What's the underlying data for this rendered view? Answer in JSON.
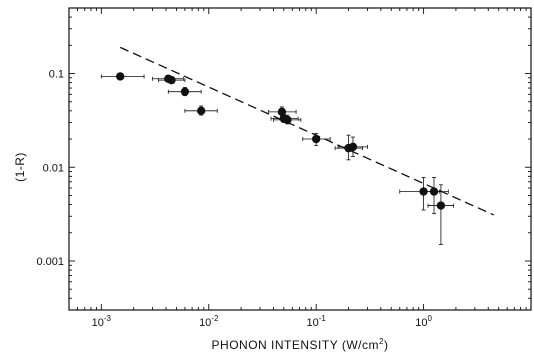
{
  "chart_data": {
    "type": "scatter",
    "title": "",
    "xlabel": "PHONON INTENSITY (W/cm",
    "xlabel_superscript": "2",
    "xlabel_suffix": ")",
    "ylabel": "(1-R)",
    "xscale": "log",
    "yscale": "log",
    "xlim": [
      0.0005,
      10
    ],
    "ylim": [
      0.0003,
      0.5
    ],
    "grid": false,
    "x_ticks": [
      {
        "value": 0.001,
        "base": "10",
        "exp": "-3"
      },
      {
        "value": 0.01,
        "base": "10",
        "exp": "-2"
      },
      {
        "value": 0.1,
        "base": "10",
        "exp": "-1"
      },
      {
        "value": 1,
        "base": "10",
        "exp": "0"
      }
    ],
    "y_ticks": [
      {
        "value": 0.1,
        "label": "0.1"
      },
      {
        "value": 0.01,
        "label": "0.01"
      },
      {
        "value": 0.001,
        "label": "0.001"
      }
    ],
    "series": [
      {
        "marker": "filled-circle",
        "color": "#111111",
        "points": [
          {
            "x": 0.0015,
            "y": 0.093,
            "xerr": [
              0.001,
              0.0025
            ],
            "yerr": [
              0.087,
              0.1
            ]
          },
          {
            "x": 0.0042,
            "y": 0.088,
            "xerr": [
              0.003,
              0.0058
            ],
            "yerr": [
              0.082,
              0.094
            ]
          },
          {
            "x": 0.0045,
            "y": 0.085,
            "xerr": [
              0.0034,
              0.006
            ],
            "yerr": [
              0.079,
              0.091
            ]
          },
          {
            "x": 0.006,
            "y": 0.064,
            "xerr": [
              0.0042,
              0.0085
            ],
            "yerr": [
              0.058,
              0.071
            ]
          },
          {
            "x": 0.0085,
            "y": 0.04,
            "xerr": [
              0.006,
              0.012
            ],
            "yerr": [
              0.036,
              0.045
            ]
          },
          {
            "x": 0.048,
            "y": 0.039,
            "xerr": [
              0.036,
              0.065
            ],
            "yerr": [
              0.035,
              0.044
            ]
          },
          {
            "x": 0.05,
            "y": 0.033,
            "xerr": [
              0.038,
              0.068
            ],
            "yerr": [
              0.03,
              0.037
            ]
          },
          {
            "x": 0.054,
            "y": 0.032,
            "xerr": [
              0.04,
              0.072
            ],
            "yerr": [
              0.029,
              0.036
            ]
          },
          {
            "x": 0.1,
            "y": 0.02,
            "xerr": [
              0.075,
              0.135
            ],
            "yerr": [
              0.017,
              0.023
            ]
          },
          {
            "x": 0.2,
            "y": 0.016,
            "xerr": [
              0.15,
              0.27
            ],
            "yerr": [
              0.012,
              0.022
            ]
          },
          {
            "x": 0.22,
            "y": 0.0165,
            "xerr": [
              0.16,
              0.3
            ],
            "yerr": [
              0.013,
              0.021
            ]
          },
          {
            "x": 1.0,
            "y": 0.0055,
            "xerr": [
              0.6,
              1.4
            ],
            "yerr": [
              0.0035,
              0.0078
            ]
          },
          {
            "x": 1.25,
            "y": 0.0055,
            "xerr": [
              0.95,
              1.7
            ],
            "yerr": [
              0.0032,
              0.0078
            ]
          },
          {
            "x": 1.45,
            "y": 0.0039,
            "xerr": [
              1.1,
              1.9
            ],
            "yerr": [
              0.0015,
              0.0065
            ]
          }
        ]
      }
    ],
    "fit_line": {
      "style": "dashed",
      "color": "#111111",
      "points": [
        {
          "x": 0.0015,
          "y": 0.19
        },
        {
          "x": 4.5,
          "y": 0.0031
        }
      ]
    }
  }
}
